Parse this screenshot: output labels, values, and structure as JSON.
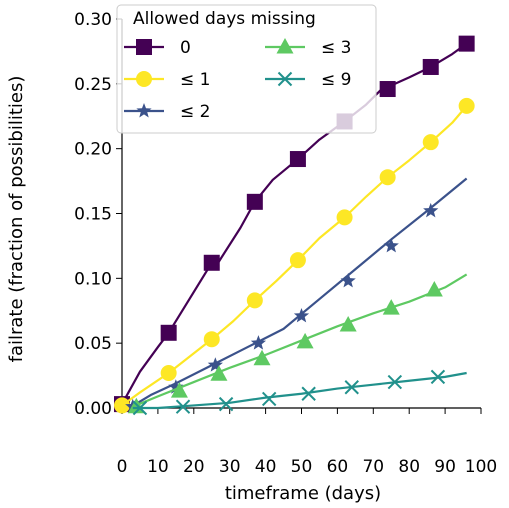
{
  "chart_data": {
    "type": "line",
    "xlabel": "timeframe (days)",
    "ylabel": "failrate (fraction of possibilities)",
    "xlim": [
      0,
      100
    ],
    "ylim": [
      0,
      0.3
    ],
    "x_ticks": [
      0,
      10,
      20,
      30,
      40,
      50,
      60,
      70,
      80,
      90,
      100
    ],
    "x_tick_labels": [
      "0",
      "10",
      "20",
      "30",
      "40",
      "50",
      "60",
      "70",
      "80",
      "90",
      "100"
    ],
    "y_ticks": [
      0.0,
      0.05,
      0.1,
      0.15,
      0.2,
      0.25,
      0.3
    ],
    "y_tick_labels": [
      "0.00",
      "0.05",
      "0.10",
      "0.15",
      "0.20",
      "0.25",
      "0.30"
    ],
    "grid": false,
    "legend": {
      "title": "Allowed days missing",
      "placement": "top-left",
      "columns": 2
    },
    "series": [
      {
        "name": "0",
        "color": "#440154",
        "marker": "square",
        "line_x": [
          0,
          5,
          10,
          13,
          19,
          25,
          27,
          33,
          37,
          42,
          49,
          55,
          62,
          68,
          72,
          80,
          86,
          92,
          96
        ],
        "line_y": [
          0.003,
          0.028,
          0.047,
          0.058,
          0.085,
          0.112,
          0.113,
          0.139,
          0.159,
          0.176,
          0.192,
          0.207,
          0.221,
          0.234,
          0.245,
          0.255,
          0.263,
          0.273,
          0.281
        ],
        "marker_x": [
          0,
          13,
          25,
          37,
          49,
          62,
          74,
          86,
          96
        ],
        "marker_y": [
          0.003,
          0.058,
          0.112,
          0.159,
          0.192,
          0.221,
          0.246,
          0.263,
          0.281
        ]
      },
      {
        "name": "≤ 1",
        "color": "#fde725",
        "marker": "circle",
        "line_x": [
          0,
          5,
          13,
          19,
          25,
          31,
          37,
          43,
          49,
          55,
          62,
          68,
          74,
          80,
          86,
          92,
          96
        ],
        "line_y": [
          0.002,
          0.012,
          0.027,
          0.04,
          0.053,
          0.067,
          0.083,
          0.098,
          0.114,
          0.131,
          0.147,
          0.163,
          0.178,
          0.191,
          0.205,
          0.22,
          0.233
        ],
        "marker_x": [
          0,
          13,
          25,
          37,
          49,
          62,
          74,
          86,
          96
        ],
        "marker_y": [
          0.002,
          0.027,
          0.053,
          0.083,
          0.114,
          0.147,
          0.178,
          0.205,
          0.233
        ]
      },
      {
        "name": "≤ 2",
        "color": "#3b528b",
        "marker": "star",
        "line_x": [
          2,
          8,
          15,
          25,
          35,
          45,
          55,
          65,
          75,
          85,
          96
        ],
        "line_y": [
          0.0,
          0.01,
          0.019,
          0.033,
          0.047,
          0.061,
          0.084,
          0.107,
          0.13,
          0.152,
          0.177
        ],
        "marker_x": [
          3,
          15,
          26,
          38,
          50,
          63,
          75,
          86
        ],
        "marker_y": [
          0.001,
          0.016,
          0.033,
          0.05,
          0.071,
          0.098,
          0.125,
          0.152
        ]
      },
      {
        "name": "≤ 3",
        "color": "#5ec962",
        "marker": "triangle",
        "line_x": [
          3,
          10,
          20,
          30,
          40,
          50,
          60,
          70,
          80,
          90,
          96
        ],
        "line_y": [
          0.001,
          0.009,
          0.02,
          0.031,
          0.041,
          0.052,
          0.063,
          0.073,
          0.082,
          0.093,
          0.103
        ],
        "marker_x": [
          4,
          16,
          27,
          39,
          51,
          63,
          75,
          87
        ],
        "marker_y": [
          0.001,
          0.013,
          0.026,
          0.038,
          0.051,
          0.064,
          0.077,
          0.091
        ]
      },
      {
        "name": "≤ 9",
        "color": "#21918c",
        "marker": "x",
        "line_x": [
          3,
          10,
          20,
          30,
          40,
          50,
          60,
          70,
          80,
          90,
          96
        ],
        "line_y": [
          0.0,
          0.0,
          0.002,
          0.004,
          0.008,
          0.011,
          0.015,
          0.018,
          0.021,
          0.024,
          0.027
        ],
        "marker_x": [
          5,
          17,
          29,
          41,
          52,
          64,
          76,
          88
        ],
        "marker_y": [
          0.0,
          0.001,
          0.003,
          0.007,
          0.011,
          0.016,
          0.02,
          0.024
        ]
      }
    ]
  }
}
